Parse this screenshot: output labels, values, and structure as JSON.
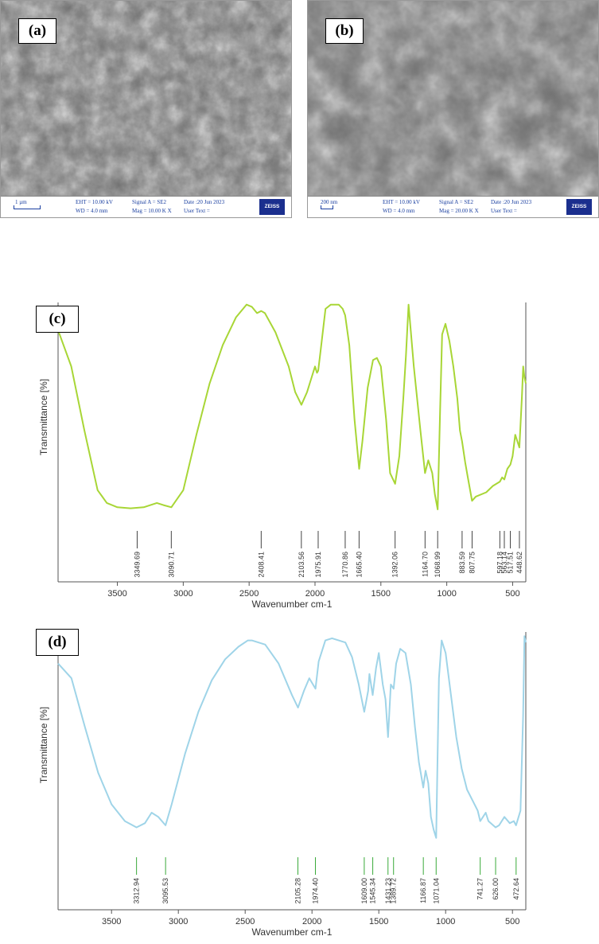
{
  "sem_panels": [
    {
      "label": "(a)",
      "scale": "1 µm",
      "eht": "EHT = 10.00 kV",
      "wd": "WD = 4.0 mm",
      "signal": "Signal A = SE2",
      "mag": "Mag = 10.00 K X",
      "date": "Date :20 Jun 2023",
      "user": "User Text =",
      "logo": "ZEISS"
    },
    {
      "label": "(b)",
      "scale": "200 nm",
      "eht": "EHT = 10.00 kV",
      "wd": "WD = 4.0 mm",
      "signal": "Signal A = SE2",
      "mag": "Mag = 20.00 K X",
      "date": "Date :20 Jun 2023",
      "user": "User Text =",
      "logo": "ZEISS"
    }
  ],
  "chart_data": [
    {
      "type": "line",
      "panel": "(c)",
      "xlabel": "Wavenumber cm-1",
      "ylabel": "Transmittance [%]",
      "xlim": [
        3950,
        400
      ],
      "ylim": [
        0,
        100
      ],
      "x_reversed": true,
      "xticks": [
        3500,
        3000,
        2500,
        2000,
        1500,
        1000,
        500
      ],
      "color": "#a8d636",
      "series": [
        {
          "x": [
            3950,
            3850,
            3750,
            3650,
            3580,
            3500,
            3400,
            3300,
            3200,
            3150,
            3090,
            3000,
            2900,
            2800,
            2700,
            2600,
            2520,
            2480,
            2440,
            2408,
            2380,
            2300,
            2200,
            2150,
            2103,
            2060,
            2030,
            2000,
            1985,
            1976,
            1960,
            1920,
            1880,
            1820,
            1790,
            1771,
            1740,
            1700,
            1665,
            1640,
            1600,
            1560,
            1530,
            1500,
            1460,
            1430,
            1392,
            1360,
            1330,
            1310,
            1290,
            1250,
            1200,
            1165,
            1140,
            1110,
            1090,
            1069,
            1050,
            1035,
            1010,
            980,
            950,
            920,
            900,
            884,
            860,
            840,
            808,
            780,
            700,
            650,
            597,
            580,
            563,
            540,
            517,
            500,
            480,
            449,
            430,
            420,
            410,
            400
          ],
          "y": [
            87,
            70,
            40,
            12,
            6,
            4,
            3.5,
            4,
            6,
            5,
            4,
            12,
            38,
            62,
            80,
            93,
            99,
            98,
            95,
            96,
            95,
            86,
            70,
            58,
            52,
            58,
            64,
            70,
            67,
            68,
            76,
            97,
            99,
            99,
            97,
            94,
            80,
            45,
            22,
            35,
            60,
            73,
            74,
            70,
            45,
            20,
            15,
            28,
            55,
            75,
            99,
            70,
            40,
            20,
            26,
            20,
            10,
            3,
            50,
            85,
            90,
            82,
            70,
            55,
            40,
            35,
            25,
            18,
            7,
            9,
            11,
            14,
            16,
            18,
            17,
            22,
            24,
            28,
            38,
            32,
            55,
            70,
            65,
            62
          ]
        }
      ],
      "peaks": [
        "3349.69",
        "3090.71",
        "2408.41",
        "2103.56",
        "1975.91",
        "1770.86",
        "1665.40",
        "1392.06",
        "1164.70",
        "1068.99",
        "883.59",
        "807.75",
        "597.18",
        "563.14",
        "517.51",
        "448.62"
      ]
    },
    {
      "type": "line",
      "panel": "(d)",
      "xlabel": "Wavenumber cm-1",
      "ylabel": "Transmittance [%]",
      "xlim": [
        3900,
        400
      ],
      "ylim": [
        0,
        100
      ],
      "x_reversed": true,
      "xticks": [
        3500,
        3000,
        2500,
        2000,
        1500,
        1000,
        500
      ],
      "color": "#9fd4e8",
      "series": [
        {
          "x": [
            3900,
            3800,
            3700,
            3600,
            3500,
            3400,
            3313,
            3250,
            3200,
            3150,
            3096,
            3050,
            2950,
            2850,
            2750,
            2650,
            2550,
            2480,
            2450,
            2350,
            2250,
            2150,
            2105,
            2060,
            2020,
            1974,
            1950,
            1900,
            1850,
            1800,
            1750,
            1700,
            1650,
            1609,
            1580,
            1570,
            1546,
            1520,
            1500,
            1470,
            1450,
            1431,
            1410,
            1389,
            1370,
            1340,
            1300,
            1260,
            1230,
            1200,
            1167,
            1150,
            1130,
            1110,
            1090,
            1071,
            1050,
            1030,
            1000,
            960,
            920,
            880,
            840,
            800,
            760,
            741,
            720,
            700,
            680,
            626,
            600,
            560,
            520,
            490,
            473,
            440,
            420,
            410,
            400
          ],
          "y": [
            85,
            78,
            55,
            33,
            18,
            10,
            7,
            9,
            14,
            12,
            8,
            18,
            42,
            62,
            77,
            87,
            93,
            96,
            96,
            94,
            85,
            70,
            64,
            72,
            78,
            73,
            86,
            96,
            97,
            96,
            95,
            88,
            75,
            62,
            72,
            80,
            70,
            83,
            90,
            75,
            68,
            50,
            75,
            73,
            85,
            92,
            90,
            75,
            55,
            38,
            26,
            34,
            28,
            12,
            6,
            2,
            78,
            96,
            90,
            70,
            50,
            35,
            25,
            20,
            15,
            10,
            12,
            14,
            10,
            7,
            8,
            12,
            9,
            10,
            8,
            15,
            60,
            98,
            95
          ]
        }
      ],
      "peaks": [
        "3312.94",
        "3095.53",
        "2105.28",
        "1974.40",
        "1609.00",
        "1545.34",
        "1431.23",
        "1389.72",
        "1166.87",
        "1071.04",
        "741.27",
        "626.00",
        "472.64"
      ]
    }
  ]
}
